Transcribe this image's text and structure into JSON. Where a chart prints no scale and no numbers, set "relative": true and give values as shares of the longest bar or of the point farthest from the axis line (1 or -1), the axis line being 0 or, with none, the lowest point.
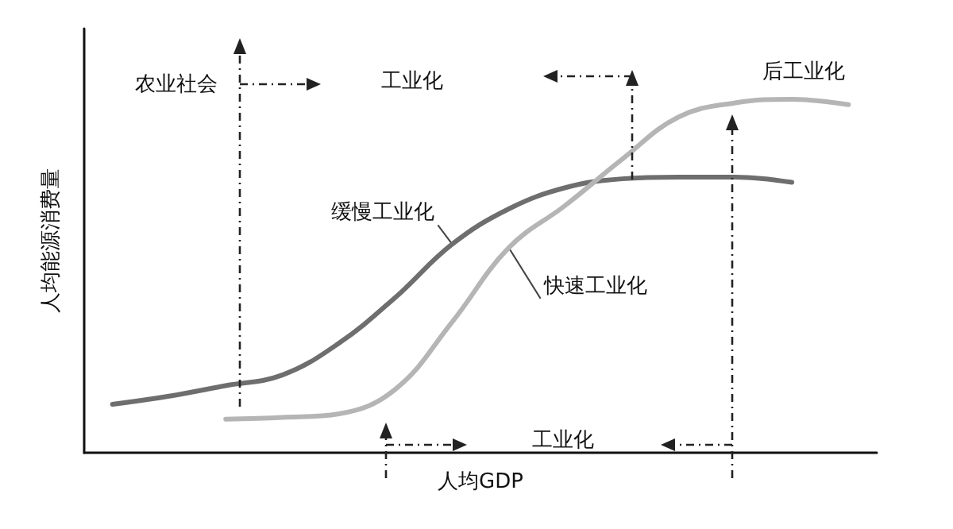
{
  "chart_data": {
    "type": "line",
    "relative": true,
    "xlabel": "人均GDP",
    "ylabel": "人均能源消费量",
    "categories": [
      null,
      null,
      null,
      null,
      null,
      null,
      null,
      null,
      null,
      null,
      null,
      null,
      null,
      null
    ],
    "series": [
      {
        "name": "缓慢工业化",
        "color": "#6e6e6e",
        "values": [
          0.137,
          0.16,
          0.19,
          0.22,
          0.31,
          0.44,
          0.59,
          0.69,
          0.75,
          0.775,
          0.78,
          0.78,
          0.765,
          null
        ]
      },
      {
        "name": "快速工业化",
        "color": "#b5b5b5",
        "values": [
          null,
          null,
          0.095,
          0.1,
          0.11,
          0.18,
          0.37,
          0.58,
          0.7,
          0.83,
          0.95,
          0.99,
          1,
          0.985
        ]
      }
    ],
    "annotations": [
      "农业社会",
      "工业化",
      "后工业化",
      "工业化"
    ],
    "marker": "none",
    "grid": false,
    "legend": false
  }
}
